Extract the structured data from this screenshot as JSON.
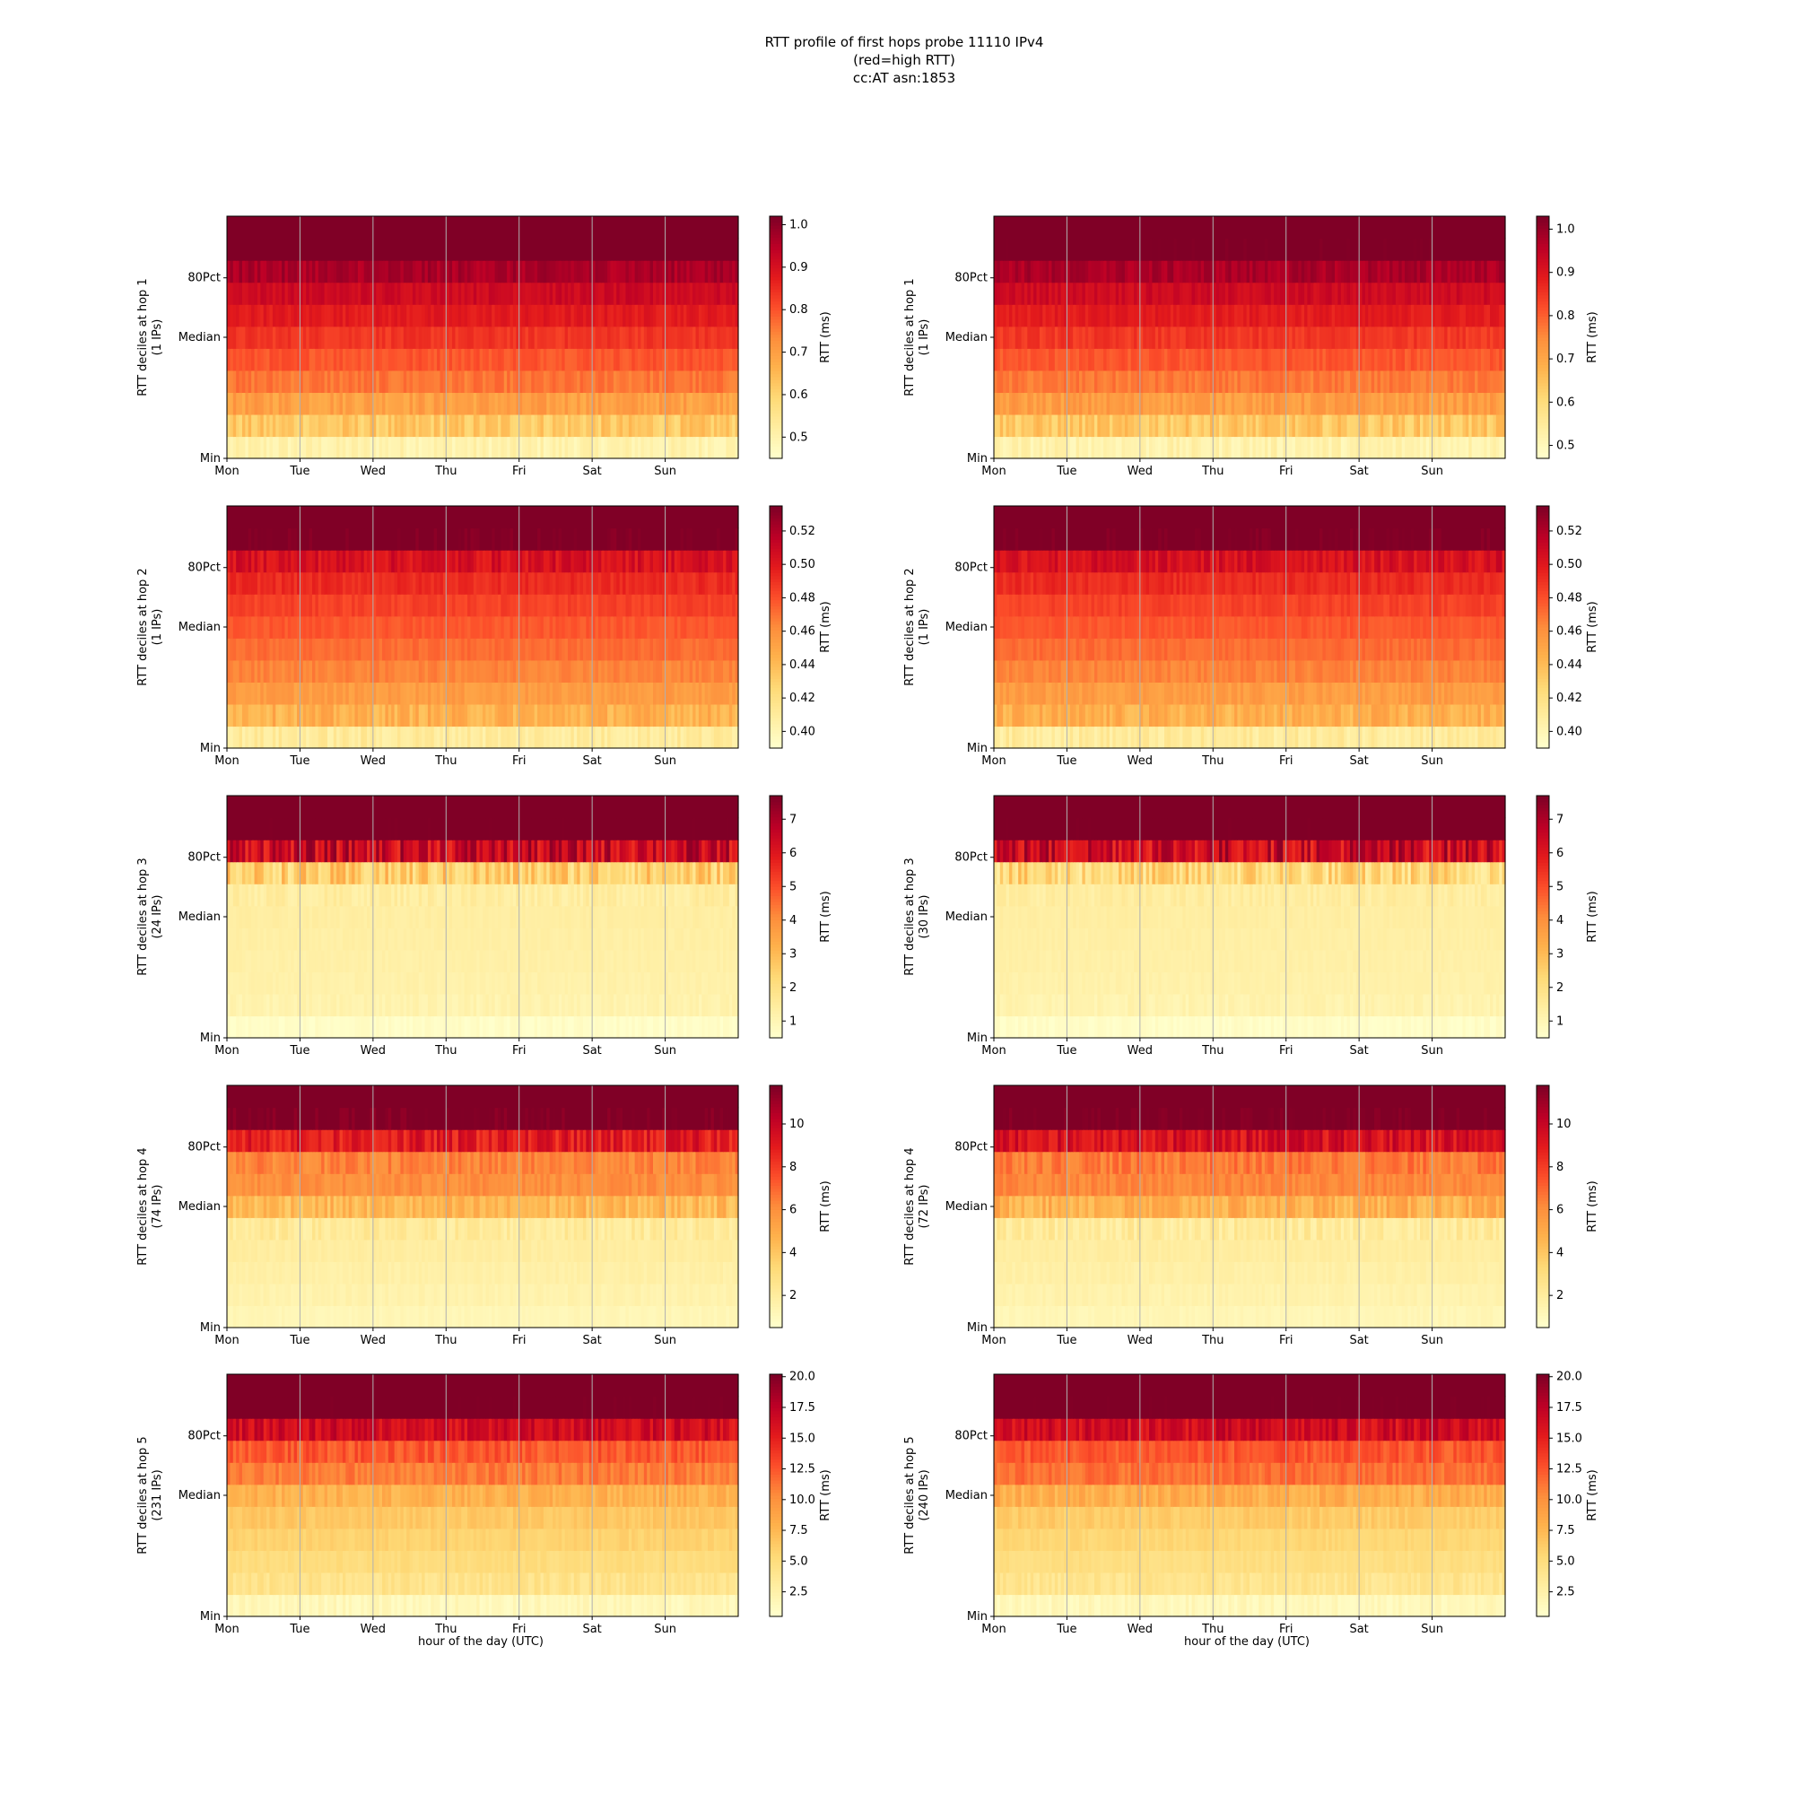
{
  "figure": {
    "title_lines": [
      "RTT profile of first hops probe 11110 IPv4",
      "(red=high RTT)",
      "cc:AT asn:1853"
    ],
    "xlabel": "hour of the day (UTC)",
    "colorbar_label": "RTT (ms)",
    "colormap": [
      "#ffffcc",
      "#ffeda0",
      "#fed976",
      "#feb24c",
      "#fd8d3c",
      "#fc4e2a",
      "#e31a1c",
      "#bd0026",
      "#800026"
    ],
    "grid_color": "#b0b0b0"
  },
  "chart_data": [
    {
      "type": "heatmap",
      "hop": 1,
      "ylabel": "RTT deciles at hop 1",
      "ips_label": "(1 IPs)",
      "x_ticks": [
        "Mon",
        "Tue",
        "Wed",
        "Thu",
        "Fri",
        "Sat",
        "Sun"
      ],
      "y_ticks": [
        "Min",
        "Median",
        "80Pct"
      ],
      "colorbar": {
        "min": 0.45,
        "max": 1.02,
        "ticks": [
          0.5,
          0.6,
          0.7,
          0.8,
          0.9,
          1.0
        ]
      },
      "decile_levels": [
        0.5,
        0.62,
        0.7,
        0.76,
        0.8,
        0.84,
        0.88,
        0.92,
        0.97,
        1.05,
        1.1
      ]
    },
    {
      "type": "heatmap",
      "hop": 1,
      "ylabel": "RTT deciles at hop 1",
      "ips_label": "(1 IPs)",
      "x_ticks": [
        "Mon",
        "Tue",
        "Wed",
        "Thu",
        "Fri",
        "Sat",
        "Sun"
      ],
      "y_ticks": [
        "Min",
        "Median",
        "80Pct"
      ],
      "colorbar": {
        "min": 0.47,
        "max": 1.03,
        "ticks": [
          0.5,
          0.6,
          0.7,
          0.8,
          0.9,
          1.0
        ]
      },
      "decile_levels": [
        0.52,
        0.64,
        0.72,
        0.77,
        0.81,
        0.85,
        0.89,
        0.93,
        0.98,
        1.05,
        1.1
      ]
    },
    {
      "type": "heatmap",
      "hop": 2,
      "ylabel": "RTT deciles at hop 2",
      "ips_label": "(1 IPs)",
      "x_ticks": [
        "Mon",
        "Tue",
        "Wed",
        "Thu",
        "Fri",
        "Sat",
        "Sun"
      ],
      "y_ticks": [
        "Min",
        "Median",
        "80Pct"
      ],
      "colorbar": {
        "min": 0.39,
        "max": 0.535,
        "ticks": [
          0.4,
          0.42,
          0.44,
          0.46,
          0.48,
          0.5,
          0.52
        ]
      },
      "decile_levels": [
        0.41,
        0.445,
        0.455,
        0.465,
        0.472,
        0.478,
        0.485,
        0.493,
        0.505,
        0.54,
        0.55
      ]
    },
    {
      "type": "heatmap",
      "hop": 2,
      "ylabel": "RTT deciles at hop 2",
      "ips_label": "(1 IPs)",
      "x_ticks": [
        "Mon",
        "Tue",
        "Wed",
        "Thu",
        "Fri",
        "Sat",
        "Sun"
      ],
      "y_ticks": [
        "Min",
        "Median",
        "80Pct"
      ],
      "colorbar": {
        "min": 0.39,
        "max": 0.535,
        "ticks": [
          0.4,
          0.42,
          0.44,
          0.46,
          0.48,
          0.5,
          0.52
        ]
      },
      "decile_levels": [
        0.41,
        0.445,
        0.455,
        0.465,
        0.472,
        0.478,
        0.485,
        0.493,
        0.505,
        0.54,
        0.55
      ]
    },
    {
      "type": "heatmap",
      "hop": 3,
      "ylabel": "RTT deciles at hop 3",
      "ips_label": "(24 IPs)",
      "x_ticks": [
        "Mon",
        "Tue",
        "Wed",
        "Thu",
        "Fri",
        "Sat",
        "Sun"
      ],
      "y_ticks": [
        "Min",
        "Median",
        "80Pct"
      ],
      "colorbar": {
        "min": 0.5,
        "max": 7.7,
        "ticks": [
          1,
          2,
          3,
          4,
          5,
          6,
          7
        ]
      },
      "decile_levels": [
        0.6,
        1.1,
        1.2,
        1.25,
        1.3,
        1.35,
        1.4,
        2.5,
        6.5,
        8,
        8
      ]
    },
    {
      "type": "heatmap",
      "hop": 3,
      "ylabel": "RTT deciles at hop 3",
      "ips_label": "(30 IPs)",
      "x_ticks": [
        "Mon",
        "Tue",
        "Wed",
        "Thu",
        "Fri",
        "Sat",
        "Sun"
      ],
      "y_ticks": [
        "Min",
        "Median",
        "80Pct"
      ],
      "colorbar": {
        "min": 0.5,
        "max": 7.7,
        "ticks": [
          1,
          2,
          3,
          4,
          5,
          6,
          7
        ]
      },
      "decile_levels": [
        0.6,
        1.1,
        1.2,
        1.25,
        1.3,
        1.35,
        1.4,
        2.2,
        6.5,
        8,
        8
      ]
    },
    {
      "type": "heatmap",
      "hop": 4,
      "ylabel": "RTT deciles at hop 4",
      "ips_label": "(74 IPs)",
      "x_ticks": [
        "Mon",
        "Tue",
        "Wed",
        "Thu",
        "Fri",
        "Sat",
        "Sun"
      ],
      "y_ticks": [
        "Min",
        "Median",
        "80Pct"
      ],
      "colorbar": {
        "min": 0.5,
        "max": 11.8,
        "ticks": [
          2,
          4,
          6,
          8,
          10
        ]
      },
      "decile_levels": [
        1.2,
        1.5,
        1.7,
        1.9,
        2.1,
        4.5,
        6.0,
        6.3,
        9.0,
        12,
        12
      ]
    },
    {
      "type": "heatmap",
      "hop": 4,
      "ylabel": "RTT deciles at hop 4",
      "ips_label": "(72 IPs)",
      "x_ticks": [
        "Mon",
        "Tue",
        "Wed",
        "Thu",
        "Fri",
        "Sat",
        "Sun"
      ],
      "y_ticks": [
        "Min",
        "Median",
        "80Pct"
      ],
      "colorbar": {
        "min": 0.5,
        "max": 11.8,
        "ticks": [
          2,
          4,
          6,
          8,
          10
        ]
      },
      "decile_levels": [
        1.2,
        1.5,
        1.7,
        1.9,
        2.1,
        4.8,
        6.2,
        6.6,
        9.5,
        12,
        12
      ]
    },
    {
      "type": "heatmap",
      "hop": 5,
      "ylabel": "RTT deciles at hop 5",
      "ips_label": "(231 IPs)",
      "x_ticks": [
        "Mon",
        "Tue",
        "Wed",
        "Thu",
        "Fri",
        "Sat",
        "Sun"
      ],
      "y_ticks": [
        "Min",
        "Median",
        "80Pct"
      ],
      "colorbar": {
        "min": 0.5,
        "max": 20.2,
        "ticks": [
          2.5,
          5.0,
          7.5,
          10.0,
          12.5,
          15.0,
          17.5,
          20.0
        ]
      },
      "decile_levels": [
        1.5,
        4.2,
        5.0,
        5.8,
        6.5,
        8.0,
        11.0,
        12.5,
        16.5,
        21,
        21
      ]
    },
    {
      "type": "heatmap",
      "hop": 5,
      "ylabel": "RTT deciles at hop 5",
      "ips_label": "(240 IPs)",
      "x_ticks": [
        "Mon",
        "Tue",
        "Wed",
        "Thu",
        "Fri",
        "Sat",
        "Sun"
      ],
      "y_ticks": [
        "Min",
        "Median",
        "80Pct"
      ],
      "colorbar": {
        "min": 0.5,
        "max": 20.2,
        "ticks": [
          2.5,
          5.0,
          7.5,
          10.0,
          12.5,
          15.0,
          17.5,
          20.0
        ]
      },
      "decile_levels": [
        1.5,
        4.0,
        4.8,
        5.5,
        6.3,
        8.2,
        11.5,
        12.5,
        16.5,
        21,
        21
      ]
    }
  ]
}
